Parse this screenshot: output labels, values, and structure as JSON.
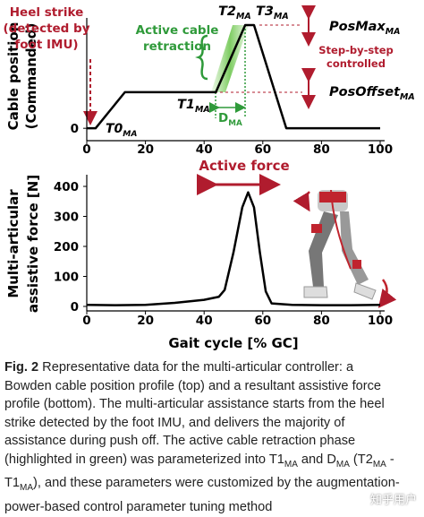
{
  "chart_data": [
    {
      "type": "line",
      "ylabel": [
        "Cable position",
        "(Commanded)"
      ],
      "x": [
        0,
        3,
        13,
        44,
        54,
        57,
        68,
        100
      ],
      "values": [
        0,
        0,
        35,
        35,
        100,
        100,
        0,
        0
      ],
      "xlim": [
        0,
        100
      ],
      "ylim": [
        -12,
        100
      ],
      "xticks": [
        0,
        20,
        40,
        60,
        80,
        100
      ],
      "yticks": [
        0
      ],
      "color": "#000000",
      "annotations": [
        {
          "lines": [
            "Heel strike",
            "(detected by",
            "foot IMU)"
          ],
          "color": "#b01c2e"
        },
        {
          "lines": [
            "Active cable",
            "retraction"
          ],
          "color": "#2f9a3a"
        },
        {
          "text": "T2",
          "sub": "MA",
          "color": "#000000"
        },
        {
          "text": "T3",
          "sub": "MA",
          "color": "#000000"
        },
        {
          "text": "PosMax",
          "sub": "MA",
          "color": "#000000"
        },
        {
          "lines": [
            "Step-by-step",
            "controlled"
          ],
          "color": "#b01c2e"
        },
        {
          "text": "PosOffset",
          "sub": "MA",
          "color": "#000000"
        },
        {
          "text": "T1",
          "sub": "MA",
          "color": "#000000"
        },
        {
          "text": "D",
          "sub": "MA",
          "color": "#2f9a3a"
        },
        {
          "text": "T0",
          "sub": "MA",
          "color": "#000000"
        }
      ]
    },
    {
      "type": "line",
      "ylabel": [
        "Multi-articular",
        "assistive force [N]"
      ],
      "xlabel": "Gait cycle [% GC]",
      "x": [
        0,
        10,
        20,
        30,
        40,
        45,
        47,
        50,
        53,
        55,
        57,
        59,
        61,
        63,
        70,
        80,
        90,
        100
      ],
      "values": [
        5,
        4,
        5,
        12,
        22,
        32,
        55,
        180,
        330,
        380,
        330,
        180,
        50,
        10,
        5,
        4,
        4,
        5
      ],
      "xlim": [
        0,
        100
      ],
      "ylim": [
        -15,
        415
      ],
      "xticks": [
        0,
        20,
        40,
        60,
        80,
        100
      ],
      "yticks": [
        0,
        100,
        200,
        300,
        400
      ],
      "color": "#000000",
      "annotations": [
        {
          "lines": [
            "Active force"
          ],
          "color": "#b01c2e"
        }
      ]
    }
  ],
  "caption": [
    [
      {
        "text": "Fig. 2",
        "style": "bold"
      },
      {
        "text": " Representative data for the multi-articular controller: a"
      }
    ],
    [
      {
        "text": "Bowden cable position profile (top) and a resultant assistive force"
      }
    ],
    [
      {
        "text": "profile (bottom). The multi-articular assistance starts from the heel"
      }
    ],
    [
      {
        "text": "strike detected by the foot IMU, and delivers the majority of"
      }
    ],
    [
      {
        "text": "assistance during push off. The active cable retraction phase"
      }
    ],
    [
      {
        "text": "(highlighted in green) was parameterized into T1"
      },
      {
        "text": "MA",
        "style": "sub"
      },
      {
        "text": " and D"
      },
      {
        "text": "MA",
        "style": "sub"
      },
      {
        "text": " (T2"
      },
      {
        "text": "MA",
        "style": "sub"
      },
      {
        "text": " -"
      }
    ],
    [
      {
        "text": "T1"
      },
      {
        "text": "MA",
        "style": "sub"
      },
      {
        "text": "), and these parameters were customized by the augmentation-"
      }
    ],
    [
      {
        "text": "power-based control parameter tuning method"
      }
    ]
  ],
  "watermark": "知乎用户"
}
